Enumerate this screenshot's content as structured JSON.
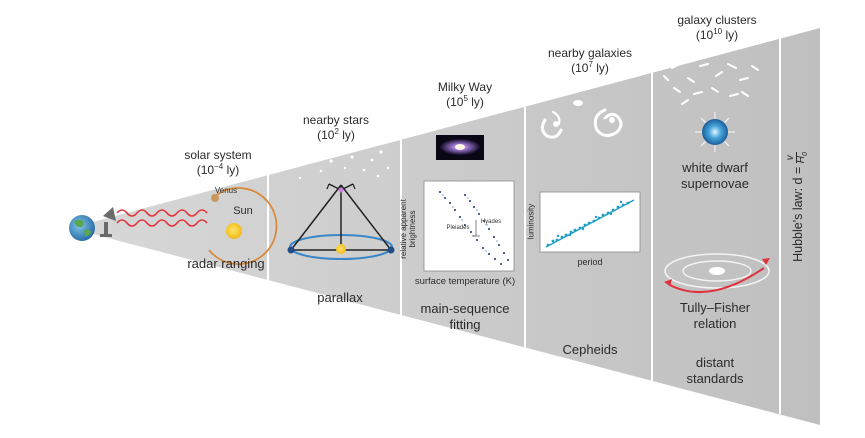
{
  "regions": [
    {
      "title": "solar system",
      "scale_base": "(10",
      "scale_exp": "−4",
      "scale_unit": " ly)",
      "method": "radar ranging",
      "planet_label": "Venus",
      "star_label": "Sun"
    },
    {
      "title": "nearby stars",
      "scale_base": "(10",
      "scale_exp": "2",
      "scale_unit": " ly)",
      "method": "parallax"
    },
    {
      "title": "Milky Way",
      "scale_base": "(10",
      "scale_exp": "5",
      "scale_unit": " ly)",
      "method_line1": "main-sequence",
      "method_line2": "fitting",
      "plot": {
        "ylabel_line1": "relative apparent",
        "ylabel_line2": "brightness",
        "xlabel": "surface temperature (K)",
        "cluster_a": "Pleiades",
        "cluster_b": "Hyades"
      }
    },
    {
      "title": "nearby galaxies",
      "scale_base": "(10",
      "scale_exp": "7",
      "scale_unit": " ly)",
      "method": "Cepheids",
      "plot": {
        "ylabel": "luminosity",
        "xlabel": "period"
      }
    },
    {
      "title": "galaxy clusters",
      "scale_base": "(10",
      "scale_exp": "10",
      "scale_unit": " ly)",
      "method_a_line1": "white dwarf",
      "method_a_line2": "supernovae",
      "method_b_line1": "Tully–Fisher",
      "method_b_line2": "relation",
      "method_c_line1": "distant",
      "method_c_line2": "standards"
    }
  ],
  "hubble_law": {
    "prefix": "Hubble's law: d = ",
    "numerator": "v",
    "denominator": "H",
    "subscript": "0"
  },
  "colors": {
    "cone": "#c4c4c4",
    "divider": "#ffffff",
    "accent_red": "#e0323a",
    "sun": "#f5c518",
    "orbit_blue": "#3a86c8",
    "data_blue": "#1f9ec4"
  }
}
